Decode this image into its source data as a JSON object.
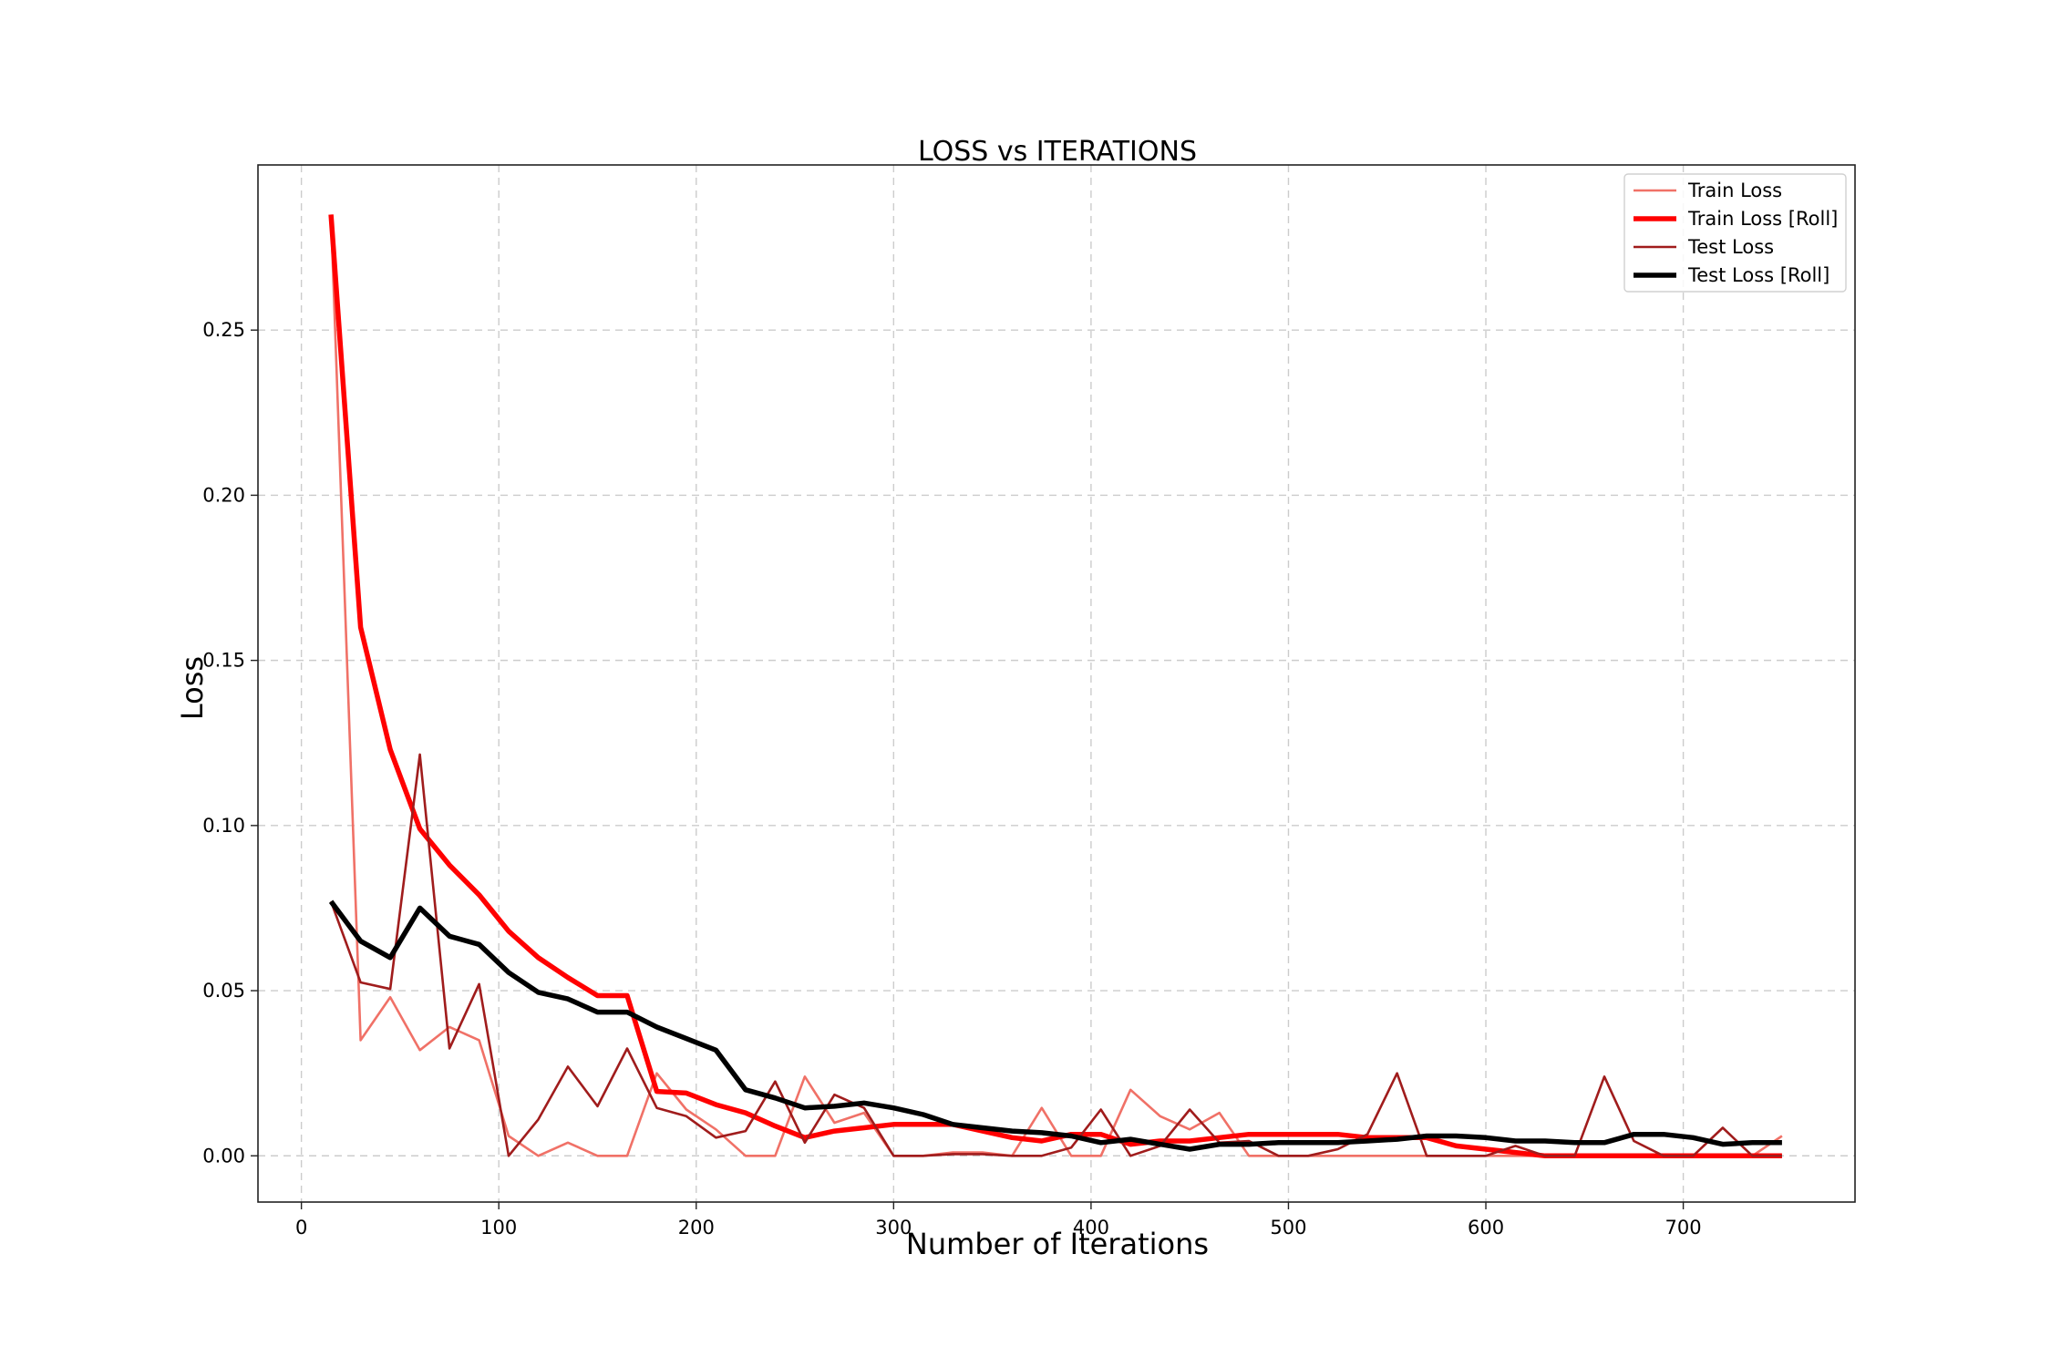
{
  "chart_data": {
    "type": "line",
    "title": "LOSS vs ITERATIONS",
    "xlabel": "Number of Iterations",
    "ylabel": "Loss",
    "xlim": [
      -22,
      787
    ],
    "ylim": [
      -0.014,
      0.3
    ],
    "x_ticks": [
      0,
      100,
      200,
      300,
      400,
      500,
      600,
      700
    ],
    "y_ticks": [
      0.0,
      0.05,
      0.1,
      0.15,
      0.2,
      0.25
    ],
    "y_tick_labels": [
      "0.00",
      "0.05",
      "0.10",
      "0.15",
      "0.20",
      "0.25"
    ],
    "grid": true,
    "legend_position": "top-right",
    "x": [
      15,
      30,
      45,
      60,
      75,
      90,
      105,
      120,
      135,
      150,
      165,
      180,
      195,
      210,
      225,
      240,
      255,
      270,
      285,
      300,
      315,
      330,
      345,
      360,
      375,
      390,
      405,
      420,
      435,
      450,
      465,
      480,
      495,
      510,
      525,
      540,
      555,
      570,
      585,
      600,
      615,
      630,
      645,
      660,
      675,
      690,
      705,
      720,
      735,
      750
    ],
    "series": [
      {
        "name": "Train Loss",
        "color": "#f07167",
        "width": 2.6,
        "values": [
          0.285,
          0.035,
          0.048,
          0.032,
          0.039,
          0.035,
          0.006,
          0.0,
          0.004,
          0.0,
          0.0,
          0.025,
          0.014,
          0.008,
          0.0,
          0.0,
          0.024,
          0.01,
          0.013,
          0.0,
          0.0,
          0.001,
          0.001,
          0.0,
          0.0145,
          0.0,
          0.0,
          0.02,
          0.012,
          0.008,
          0.013,
          0.0,
          0.0,
          0.0,
          0.0,
          0.0,
          0.0,
          0.0,
          0.0,
          0.0,
          0.0,
          0.0,
          0.0,
          0.0,
          0.0,
          0.0,
          0.0,
          0.0,
          0.0,
          0.006
        ]
      },
      {
        "name": "Train Loss [Roll]",
        "color": "#ff0000",
        "width": 5.5,
        "values": [
          0.285,
          0.16,
          0.123,
          0.099,
          0.088,
          0.079,
          0.068,
          0.06,
          0.054,
          0.0485,
          0.0485,
          0.0195,
          0.019,
          0.0155,
          0.013,
          0.009,
          0.0055,
          0.0075,
          0.0085,
          0.0095,
          0.0095,
          0.0095,
          0.0075,
          0.0055,
          0.0045,
          0.0065,
          0.0065,
          0.0035,
          0.0045,
          0.0045,
          0.0055,
          0.0065,
          0.0065,
          0.0065,
          0.0065,
          0.0055,
          0.0055,
          0.0055,
          0.003,
          0.002,
          0.001,
          0.0,
          0.0,
          0.0,
          0.0,
          0.0,
          0.0,
          0.0,
          0.0,
          0.0
        ]
      },
      {
        "name": "Test Loss",
        "color": "#a01c1c",
        "width": 2.6,
        "values": [
          0.077,
          0.0525,
          0.0505,
          0.1215,
          0.0325,
          0.052,
          0.0,
          0.011,
          0.027,
          0.015,
          0.0325,
          0.0145,
          0.012,
          0.0055,
          0.0075,
          0.0225,
          0.004,
          0.0185,
          0.0145,
          0.0,
          0.0,
          0.0005,
          0.0005,
          0.0,
          0.0,
          0.0025,
          0.014,
          0.0,
          0.003,
          0.014,
          0.004,
          0.0045,
          0.0,
          0.0,
          0.002,
          0.0065,
          0.025,
          0.0,
          0.0,
          0.0,
          0.003,
          0.0,
          0.0,
          0.024,
          0.0045,
          0.0,
          0.0,
          0.0085,
          0.0,
          0.0
        ]
      },
      {
        "name": "Test Loss [Roll]",
        "color": "#000000",
        "width": 5.5,
        "values": [
          0.077,
          0.065,
          0.06,
          0.075,
          0.0665,
          0.064,
          0.0555,
          0.0495,
          0.0475,
          0.0435,
          0.0435,
          0.039,
          0.0355,
          0.032,
          0.02,
          0.0175,
          0.0145,
          0.015,
          0.016,
          0.0145,
          0.0125,
          0.0095,
          0.0085,
          0.0075,
          0.007,
          0.006,
          0.004,
          0.005,
          0.0035,
          0.002,
          0.0035,
          0.0035,
          0.004,
          0.004,
          0.004,
          0.0045,
          0.005,
          0.006,
          0.006,
          0.0055,
          0.0045,
          0.0045,
          0.004,
          0.004,
          0.0065,
          0.0065,
          0.0055,
          0.0035,
          0.004,
          0.004
        ]
      }
    ]
  }
}
